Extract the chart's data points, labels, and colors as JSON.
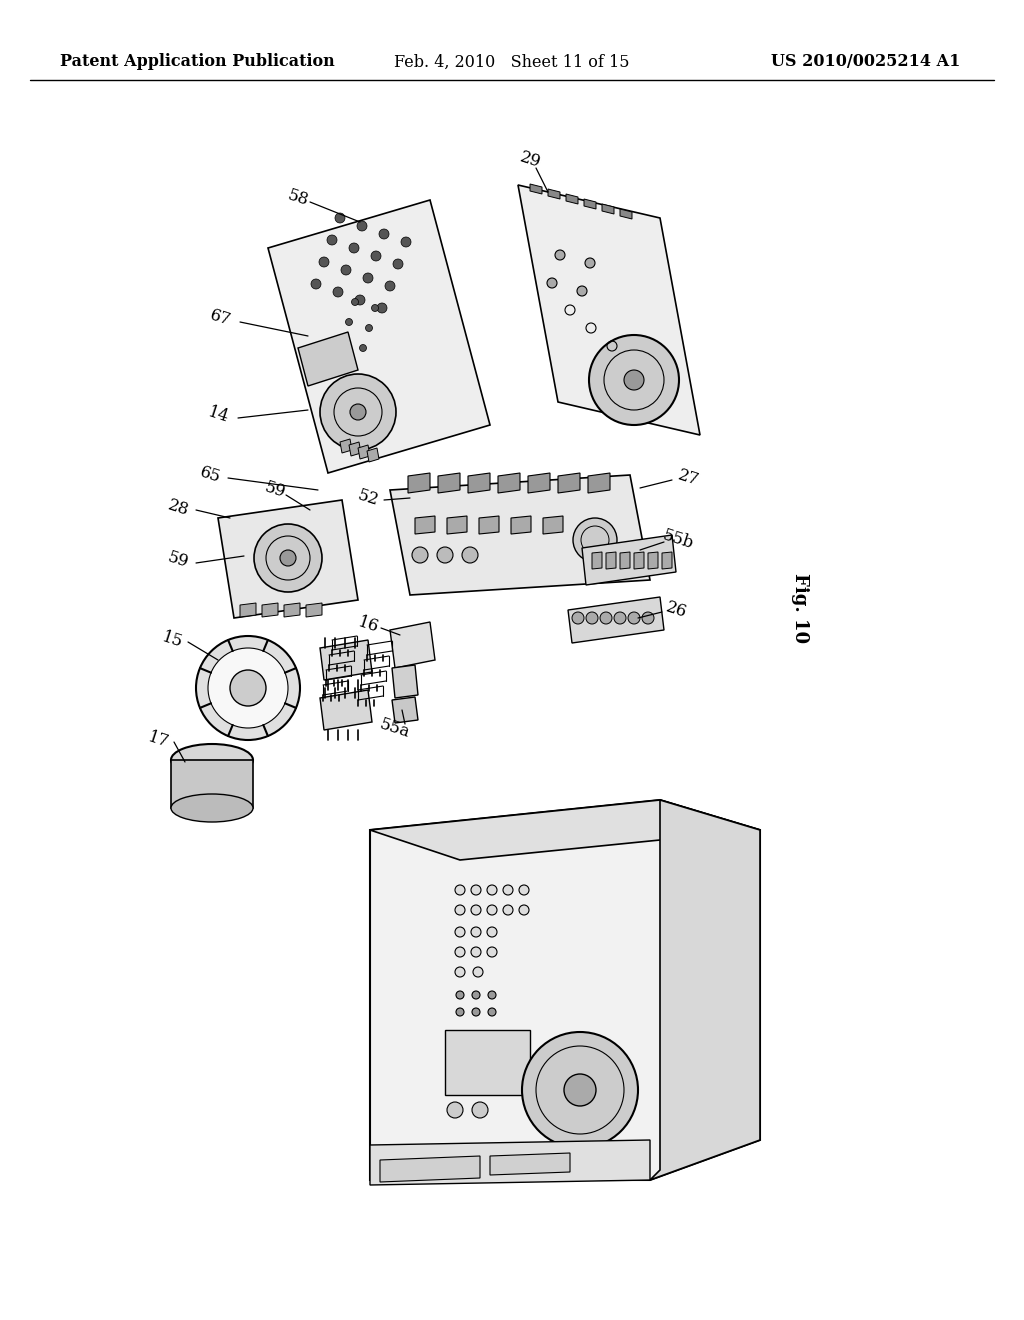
{
  "background_color": "#ffffff",
  "header_left": "Patent Application Publication",
  "header_center": "Feb. 4, 2010   Sheet 11 of 15",
  "header_right": "US 2010/0025214 A1",
  "figure_label": "Fig. 10",
  "header_fontsize": 11.5,
  "fig_label_fontsize": 13,
  "line_color": "#000000",
  "fill_color": "#f0f0f0",
  "dark_fill": "#c8c8c8"
}
